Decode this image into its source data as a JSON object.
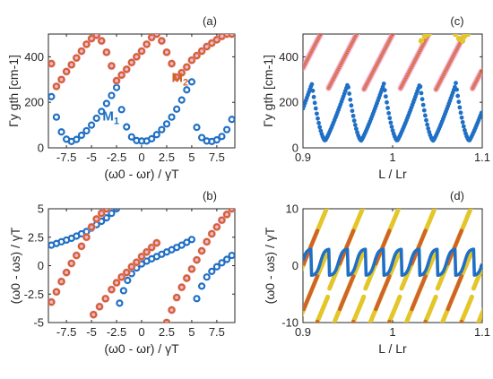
{
  "colors": {
    "blue": "#1f6fc5",
    "orange": "#d0622b",
    "pink": "#f2a6d3",
    "yellow": "#e3c62a",
    "olive": "#9a8c2a",
    "axis": "#262626"
  },
  "chart_data": [
    {
      "id": "a",
      "type": "scatter",
      "panel_label": "(a)",
      "xlabel": "(ω0 - ωr) / γT",
      "ylabel": "Γy gth [cm-1]",
      "xlim": [
        -9.3,
        9.3
      ],
      "ylim": [
        0,
        500
      ],
      "xticks": [
        -7.5,
        -5,
        -2.5,
        0,
        2.5,
        5,
        7.5
      ],
      "xtick_labels": [
        "-7.5",
        "-5",
        "-2.5",
        "0",
        "2.5",
        "5",
        "7.5"
      ],
      "yticks": [
        0,
        200,
        400
      ],
      "ytick_labels": [
        "0",
        "200",
        "400"
      ],
      "annotations": [
        {
          "text": "M",
          "sub": "2",
          "x": 3.0,
          "y": 290,
          "color": "#d0622b"
        },
        {
          "text": "M",
          "sub": "1",
          "x": -3.9,
          "y": 120,
          "color": "#1f6fc5"
        }
      ],
      "series": [
        {
          "name": "",
          "marker": "ring",
          "color": "#1f6fc5",
          "x": [
            -9,
            -8.5,
            -8,
            -7.5,
            -7,
            -6.5,
            -6,
            -5.5,
            -5,
            -4.5,
            -4,
            -3.5,
            -3,
            -2.5,
            -2,
            -1.5,
            -1,
            -0.5,
            0,
            0.5,
            1,
            1.5,
            2,
            2.5,
            3,
            3.5,
            4,
            4.5,
            5,
            5.5,
            6,
            6.5,
            7,
            7.5,
            8,
            8.5,
            9
          ],
          "y": [
            225,
            135,
            70,
            38,
            28,
            37,
            55,
            75,
            100,
            130,
            160,
            195,
            230,
            265,
            168,
            92,
            48,
            32,
            30,
            30,
            40,
            58,
            80,
            105,
            135,
            170,
            210,
            255,
            290,
            90,
            45,
            30,
            28,
            35,
            50,
            80,
            125
          ]
        },
        {
          "name": "",
          "marker": "ring",
          "color": "#d0622b",
          "x": [
            -9,
            -8.5,
            -8,
            -7.5,
            -7,
            -6.5,
            -6,
            -5.5,
            -5,
            -4.5,
            -4,
            -3.5,
            -3,
            -2.5,
            -2,
            -1.5,
            -1,
            -0.5,
            0,
            0.5,
            1,
            1.5,
            2,
            2.5,
            3,
            3.5,
            4,
            4.5,
            5,
            5.5,
            6,
            6.5,
            7,
            7.5,
            8,
            8.5,
            9
          ],
          "y": [
            370,
            270,
            300,
            335,
            365,
            395,
            425,
            455,
            480,
            495,
            470,
            420,
            360,
            295,
            320,
            345,
            375,
            400,
            425,
            455,
            485,
            500,
            470,
            420,
            370,
            310,
            330,
            355,
            385,
            405,
            425,
            445,
            460,
            475,
            490,
            500,
            500
          ]
        }
      ]
    },
    {
      "id": "b",
      "type": "scatter",
      "panel_label": "(b)",
      "xlabel": "(ω0 - ωr) / γT",
      "ylabel": "(ω0 - ωs) / γT",
      "xlim": [
        -9.3,
        9.3
      ],
      "ylim": [
        -5,
        5
      ],
      "xticks": [
        -7.5,
        -5,
        -2.5,
        0,
        2.5,
        5,
        7.5
      ],
      "xtick_labels": [
        "-7.5",
        "-5",
        "-2.5",
        "0",
        "2.5",
        "5",
        "7.5"
      ],
      "yticks": [
        -5,
        -2.5,
        0,
        2.5,
        5
      ],
      "ytick_labels": [
        "-5",
        "-2.5",
        "0",
        "2.5",
        "5"
      ],
      "series": [
        {
          "name": "",
          "marker": "ring",
          "color": "#1f6fc5",
          "x": [
            -9,
            -8.5,
            -8,
            -7.5,
            -7,
            -6.5,
            -6,
            -5.5,
            -5,
            -4.5,
            -4,
            -3.5,
            -3,
            -2.5,
            -2.2,
            -1.8,
            -1.4,
            -1,
            -0.5,
            0,
            0.5,
            1,
            1.5,
            2,
            2.5,
            3,
            3.5,
            4,
            4.5,
            5,
            5.5,
            6,
            6.5,
            7,
            7.5,
            8,
            8.5,
            9
          ],
          "y": [
            1.8,
            1.95,
            2.1,
            2.25,
            2.4,
            2.6,
            2.8,
            3.0,
            3.3,
            3.6,
            3.9,
            4.2,
            4.6,
            5.0,
            -3.3,
            -2.2,
            -1.3,
            -0.7,
            -0.2,
            0.15,
            0.4,
            0.6,
            0.8,
            1.0,
            1.2,
            1.4,
            1.6,
            1.8,
            2.05,
            2.3,
            -2.9,
            -1.8,
            -1.0,
            -0.5,
            -0.1,
            0.25,
            0.55,
            0.9
          ]
        },
        {
          "name": "",
          "marker": "ring",
          "color": "#d0622b",
          "x": [
            -9,
            -8.5,
            -8,
            -7.5,
            -7,
            -6.5,
            -6,
            -5.5,
            -5,
            -4.5,
            -4,
            -3.5,
            -4.8,
            -4.2,
            -3.6,
            -3,
            -2.5,
            -2,
            -1.5,
            -1,
            -0.5,
            0,
            0.5,
            1,
            1.5,
            2.5,
            3,
            3.5,
            4,
            4.5,
            5,
            5.5,
            6,
            6.5,
            7,
            7.5,
            8,
            8.5,
            9
          ],
          "y": [
            -3.2,
            -2.3,
            -1.4,
            -0.6,
            0.2,
            0.9,
            1.7,
            2.5,
            3.4,
            4.1,
            4.6,
            5.0,
            -4.3,
            -3.6,
            -2.9,
            -2.1,
            -1.5,
            -1.0,
            -0.6,
            -0.1,
            0.3,
            0.8,
            1.2,
            1.6,
            2.0,
            -5.0,
            -3.9,
            -2.8,
            -1.9,
            -1.1,
            -0.3,
            0.5,
            1.3,
            2.1,
            2.8,
            3.4,
            4.0,
            4.5,
            5.0
          ]
        }
      ]
    },
    {
      "id": "c",
      "type": "scatter",
      "panel_label": "(c)",
      "xlabel": "L / Lr",
      "ylabel": "Γy gth [cm-1]",
      "xlim": [
        0.9,
        1.1
      ],
      "ylim": [
        0,
        500
      ],
      "xticks": [
        0.9,
        1.0,
        1.1
      ],
      "xtick_labels": [
        "0.9",
        "1",
        "1.1"
      ],
      "yticks": [
        0,
        200,
        400
      ],
      "ytick_labels": [
        "0",
        "200",
        "400"
      ],
      "series": [
        {
          "name": "",
          "color": "#1f6fc5",
          "pattern": "dips",
          "period": 0.0402,
          "phase": 0.9095,
          "ymin": 32,
          "ymax": 290
        },
        {
          "name": "",
          "color": "#d0622b",
          "pattern": "ramps",
          "period": 0.0402,
          "phase": 0.9095,
          "ymin": 255,
          "ymax": 500
        },
        {
          "name": "",
          "color": "#e3c62a",
          "pattern": "tops",
          "points": [
            [
              1.032,
              470
            ],
            [
              1.036,
              490
            ],
            [
              1.04,
              500
            ],
            [
              1.07,
              500
            ],
            [
              1.074,
              480
            ],
            [
              1.078,
              470
            ],
            [
              1.08,
              490
            ],
            [
              1.084,
              500
            ]
          ]
        }
      ]
    },
    {
      "id": "d",
      "type": "line",
      "panel_label": "(d)",
      "xlabel": "L / Lr",
      "ylabel": "(ω0 - ωs) / γT",
      "xlim": [
        0.9,
        1.1
      ],
      "ylim": [
        -10,
        10
      ],
      "xticks": [
        0.9,
        1.0,
        1.1
      ],
      "xtick_labels": [
        "0.9",
        "1",
        "1.1"
      ],
      "yticks": [
        -10,
        0,
        10
      ],
      "ytick_labels": [
        "-10",
        "0",
        "10"
      ],
      "series": [
        {
          "name": "",
          "color": "#1f6fc5",
          "pattern": "steps",
          "period": 0.0402,
          "phase": 0.9095,
          "amplitude": 2.6
        },
        {
          "name": "",
          "color": "#d0622b",
          "pattern": "diagonals",
          "period": 0.0402,
          "phase": 0.9095,
          "slope": 380,
          "offset": 0
        },
        {
          "name": "",
          "color": "#e3c62a",
          "pattern": "diagonals_yellow",
          "period": 0.0402,
          "phase": 0.9095,
          "slope": 380,
          "offset": 0
        }
      ]
    }
  ]
}
